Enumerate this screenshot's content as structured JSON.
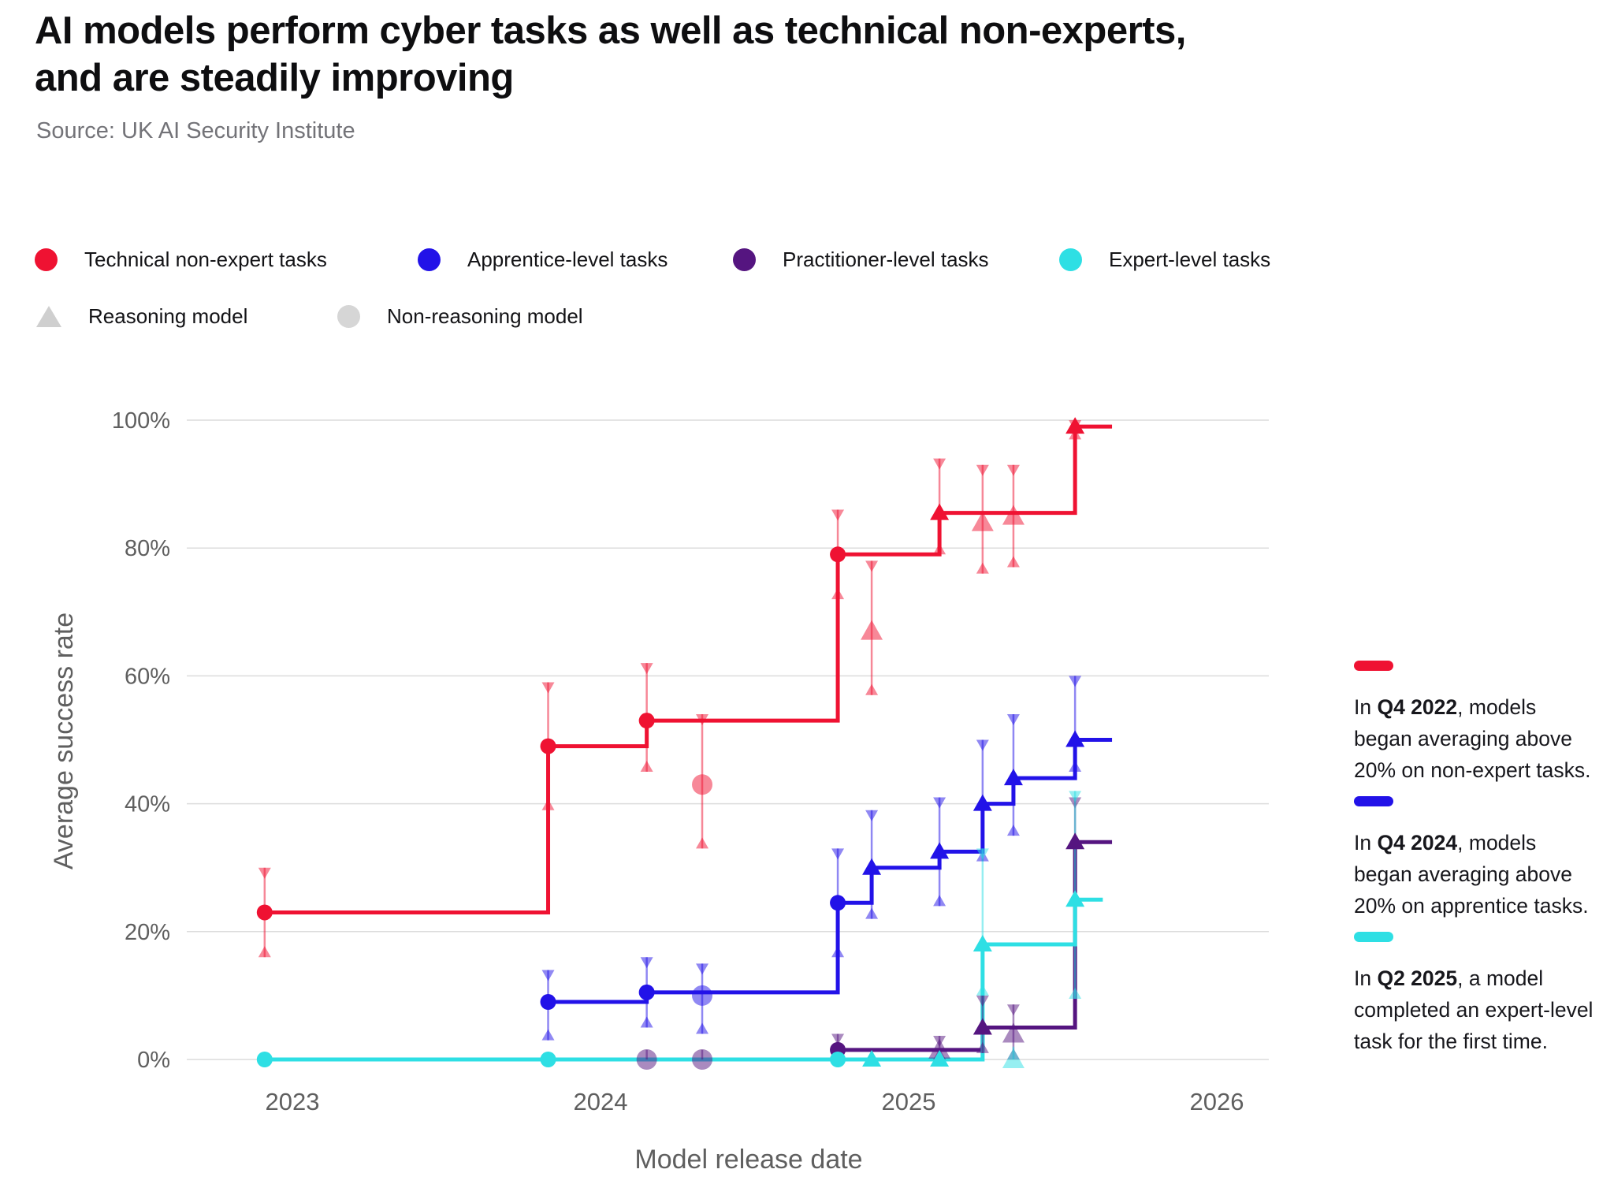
{
  "header": {
    "title": "AI models perform cyber tasks as well as technical non-experts,\nand are steadily improving",
    "source": "Source: UK AI Security Institute"
  },
  "legend": {
    "tasks": [
      {
        "label": "Technical non-expert tasks",
        "color": "#ef1232"
      },
      {
        "label": "Apprentice-level tasks",
        "color": "#2212e8"
      },
      {
        "label": "Practitioner-level tasks",
        "color": "#551580"
      },
      {
        "label": "Expert-level tasks",
        "color": "#2edfe4"
      }
    ],
    "models": [
      {
        "label": "Reasoning model",
        "marker": "triangle-icon",
        "color": "#cfcfcf"
      },
      {
        "label": "Non-reasoning model",
        "marker": "circle-icon",
        "color": "#d6d6d6"
      }
    ]
  },
  "chart_data": {
    "type": "line",
    "subtype": "step-after-records-with-error-bars",
    "title": "",
    "xlabel": "Model release date",
    "ylabel": "Average success rate",
    "x_range": [
      2022.66,
      2026.17
    ],
    "ylim": [
      0,
      100
    ],
    "grid": "horizontal",
    "x_ticks": [
      {
        "label": "2023",
        "x": 2023
      },
      {
        "label": "2024",
        "x": 2024
      },
      {
        "label": "2025",
        "x": 2025
      },
      {
        "label": "2026",
        "x": 2026
      }
    ],
    "y_ticks": [
      {
        "label": "0%",
        "v": 0
      },
      {
        "label": "20%",
        "v": 20
      },
      {
        "label": "40%",
        "v": 40
      },
      {
        "label": "60%",
        "v": 60
      },
      {
        "label": "80%",
        "v": 80
      },
      {
        "label": "100%",
        "v": 100
      }
    ],
    "marker_legend": {
      "triangle": "Reasoning model",
      "circle": "Non-reasoning model"
    },
    "series": [
      {
        "key": "technical-non-expert",
        "name": "Technical non-expert tasks",
        "color": "#ef1232",
        "line_end": 2025.66,
        "steps": [
          [
            2022.91,
            23
          ],
          [
            2023.83,
            49
          ],
          [
            2024.15,
            53
          ],
          [
            2024.77,
            79
          ],
          [
            2025.1,
            85.5
          ],
          [
            2025.54,
            99
          ]
        ],
        "points": [
          {
            "x": 2022.91,
            "y": 23,
            "lo": 16,
            "hi": 30,
            "marker": "circle",
            "record": true
          },
          {
            "x": 2023.83,
            "y": 49,
            "lo": 39,
            "hi": 59,
            "marker": "circle",
            "record": true
          },
          {
            "x": 2024.15,
            "y": 53,
            "lo": 45,
            "hi": 62,
            "marker": "circle",
            "record": true
          },
          {
            "x": 2024.33,
            "y": 43,
            "lo": 33,
            "hi": 54,
            "marker": "circle",
            "record": false
          },
          {
            "x": 2024.77,
            "y": 79,
            "lo": 72,
            "hi": 86,
            "marker": "circle",
            "record": true
          },
          {
            "x": 2024.88,
            "y": 67,
            "lo": 57,
            "hi": 78,
            "marker": "triangle",
            "record": false
          },
          {
            "x": 2025.1,
            "y": 85.5,
            "lo": 79,
            "hi": 94,
            "marker": "triangle",
            "record": true
          },
          {
            "x": 2025.24,
            "y": 84,
            "lo": 76,
            "hi": 93,
            "marker": "triangle",
            "record": false
          },
          {
            "x": 2025.34,
            "y": 85,
            "lo": 77,
            "hi": 93,
            "marker": "triangle",
            "record": false
          },
          {
            "x": 2025.54,
            "y": 99,
            "lo": 97,
            "hi": 100,
            "marker": "triangle",
            "record": true
          }
        ]
      },
      {
        "key": "apprentice",
        "name": "Apprentice-level tasks",
        "color": "#2212e8",
        "line_end": 2025.66,
        "steps": [
          [
            2023.83,
            9
          ],
          [
            2024.15,
            10.5
          ],
          [
            2024.77,
            24.5
          ],
          [
            2024.88,
            30
          ],
          [
            2025.1,
            32.5
          ],
          [
            2025.24,
            40
          ],
          [
            2025.34,
            44
          ],
          [
            2025.54,
            50
          ]
        ],
        "points": [
          {
            "x": 2023.83,
            "y": 9,
            "lo": 3,
            "hi": 14,
            "marker": "circle",
            "record": true
          },
          {
            "x": 2024.15,
            "y": 10.5,
            "lo": 5,
            "hi": 16,
            "marker": "circle",
            "record": true
          },
          {
            "x": 2024.33,
            "y": 10,
            "lo": 4,
            "hi": 15,
            "marker": "circle",
            "record": false
          },
          {
            "x": 2024.77,
            "y": 24.5,
            "lo": 16,
            "hi": 33,
            "marker": "circle",
            "record": true
          },
          {
            "x": 2024.88,
            "y": 30,
            "lo": 22,
            "hi": 39,
            "marker": "triangle",
            "record": true
          },
          {
            "x": 2025.1,
            "y": 32.5,
            "lo": 24,
            "hi": 41,
            "marker": "triangle",
            "record": true
          },
          {
            "x": 2025.24,
            "y": 40,
            "lo": 31,
            "hi": 50,
            "marker": "triangle",
            "record": true
          },
          {
            "x": 2025.34,
            "y": 44,
            "lo": 35,
            "hi": 54,
            "marker": "triangle",
            "record": true
          },
          {
            "x": 2025.54,
            "y": 50,
            "lo": 45,
            "hi": 60,
            "marker": "triangle",
            "record": true
          }
        ]
      },
      {
        "key": "practitioner",
        "name": "Practitioner-level tasks",
        "color": "#551580",
        "line_end": 2025.66,
        "steps": [
          [
            2024.15,
            0
          ],
          [
            2024.77,
            1.5
          ],
          [
            2025.24,
            5
          ],
          [
            2025.54,
            34
          ]
        ],
        "points": [
          {
            "x": 2024.15,
            "y": 0,
            "lo": 0,
            "hi": 1.5,
            "marker": "circle",
            "record": false
          },
          {
            "x": 2024.33,
            "y": 0,
            "lo": 0,
            "hi": 1.5,
            "marker": "circle",
            "record": false
          },
          {
            "x": 2024.77,
            "y": 1.5,
            "lo": 0,
            "hi": 4,
            "marker": "circle",
            "record": true
          },
          {
            "x": 2025.1,
            "y": 1.5,
            "lo": 0,
            "hi": 3.7,
            "marker": "triangle",
            "record": false
          },
          {
            "x": 2025.24,
            "y": 5,
            "lo": 1,
            "hi": 10,
            "marker": "triangle",
            "record": true
          },
          {
            "x": 2025.34,
            "y": 4,
            "lo": 0,
            "hi": 8.6,
            "marker": "triangle",
            "record": false
          },
          {
            "x": 2025.54,
            "y": 34,
            "lo": 24,
            "hi": 41,
            "marker": "triangle",
            "record": true
          }
        ]
      },
      {
        "key": "expert",
        "name": "Expert-level tasks",
        "color": "#2edfe4",
        "line_end": 2025.63,
        "steps": [
          [
            2022.91,
            0
          ],
          [
            2025.24,
            18
          ],
          [
            2025.54,
            25
          ]
        ],
        "points": [
          {
            "x": 2022.91,
            "y": 0,
            "lo": 0,
            "hi": 0,
            "marker": "circle",
            "record": true
          },
          {
            "x": 2023.83,
            "y": 0,
            "lo": 0,
            "hi": 0,
            "marker": "circle",
            "record": true
          },
          {
            "x": 2024.77,
            "y": 0,
            "lo": 0,
            "hi": 0,
            "marker": "circle",
            "record": true
          },
          {
            "x": 2024.88,
            "y": 0,
            "lo": 0,
            "hi": 0,
            "marker": "triangle",
            "record": true
          },
          {
            "x": 2025.1,
            "y": 0,
            "lo": 0,
            "hi": 0,
            "marker": "triangle",
            "record": true
          },
          {
            "x": 2025.24,
            "y": 18,
            "lo": 10,
            "hi": 33,
            "marker": "triangle",
            "record": true
          },
          {
            "x": 2025.34,
            "y": 0,
            "lo": 0,
            "hi": 2,
            "marker": "triangle",
            "record": false
          },
          {
            "x": 2025.54,
            "y": 25,
            "lo": 9.5,
            "hi": 42,
            "marker": "triangle",
            "record": true
          }
        ]
      }
    ],
    "annotations": [
      {
        "color": "#ef1232",
        "pre": "In ",
        "bold": "Q4 2022",
        "post": ", models began averaging above 20% on non-expert tasks."
      },
      {
        "color": "#2212e8",
        "pre": "In ",
        "bold": "Q4 2024",
        "post": ", models began averaging above 20% on apprentice tasks."
      },
      {
        "color": "#2edfe4",
        "pre": "In ",
        "bold": "Q2 2025",
        "post": ", a model completed an expert-level task for the first time."
      }
    ]
  }
}
